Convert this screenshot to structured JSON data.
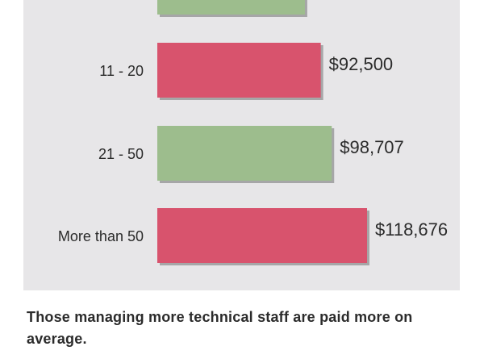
{
  "chart_data": {
    "type": "bar",
    "orientation": "horizontal",
    "categories": [
      "",
      "11 - 20",
      "21 - 50",
      "More than 50"
    ],
    "values": [
      83500,
      92500,
      98707,
      118676
    ],
    "value_labels": [
      "",
      "$92,500",
      "$98,707",
      "$118,676"
    ],
    "bar_colors": [
      "#9dbd8d",
      "#d8536d",
      "#9dbd8d",
      "#d8536d"
    ],
    "background": "#e7e6e8",
    "grid": false,
    "title": "",
    "xlabel": "",
    "ylabel": ""
  },
  "caption": "Those managing more technical staff are paid more on average."
}
